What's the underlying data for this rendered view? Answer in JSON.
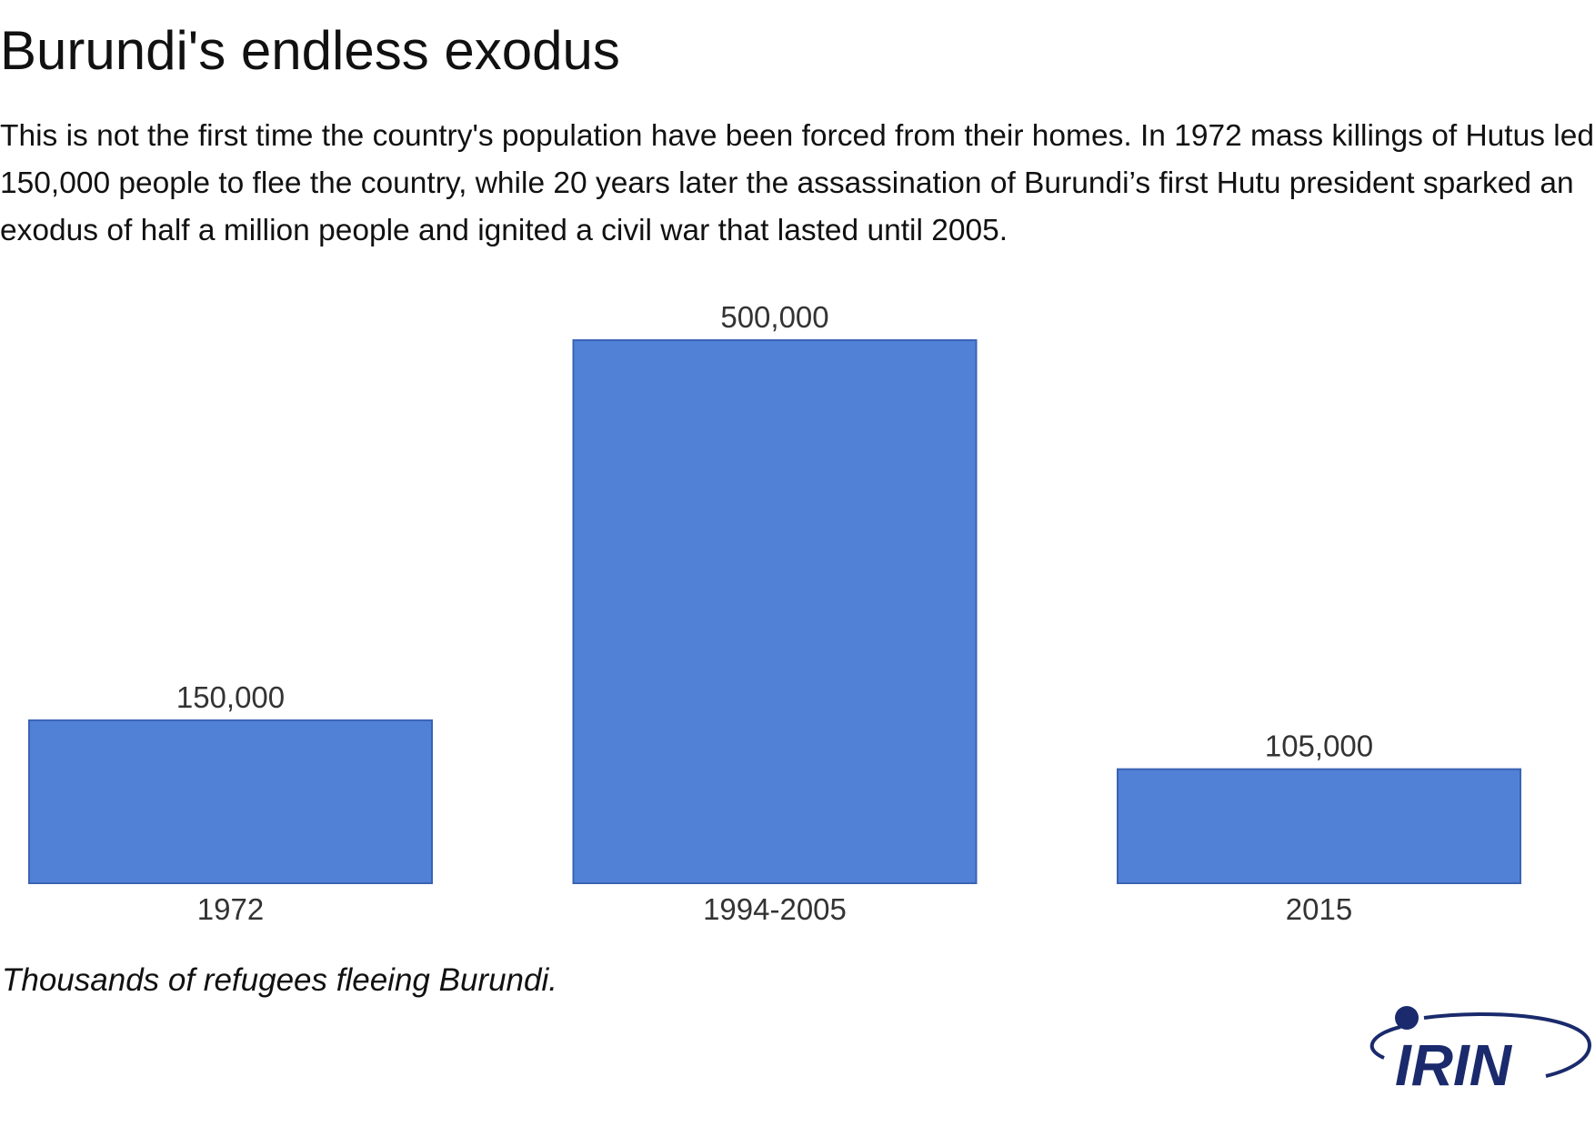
{
  "header": {
    "title": "Burundi's endless exodus",
    "description": "This is not the first time the country's population have been forced from their homes. In 1972 mass killings of Hutus led 150,000 people to flee the country, while 20 years later the assassination of Burundi’s first Hutu president sparked an exodus of half a million people and ignited a civil war that lasted until 2005."
  },
  "chart_data": {
    "type": "bar",
    "categories": [
      "1972",
      "1994-2005",
      "2015"
    ],
    "values": [
      150000,
      500000,
      105000
    ],
    "data_labels": [
      "150,000",
      "500,000",
      "105,000"
    ],
    "ylim": [
      0,
      500000
    ],
    "grid": false,
    "legend": "none",
    "bar_color": "#5181d6",
    "caption": "Thousands of refugees fleeing Burundi."
  },
  "logo": {
    "text": "IRIN",
    "color": "#1a2a6c"
  }
}
